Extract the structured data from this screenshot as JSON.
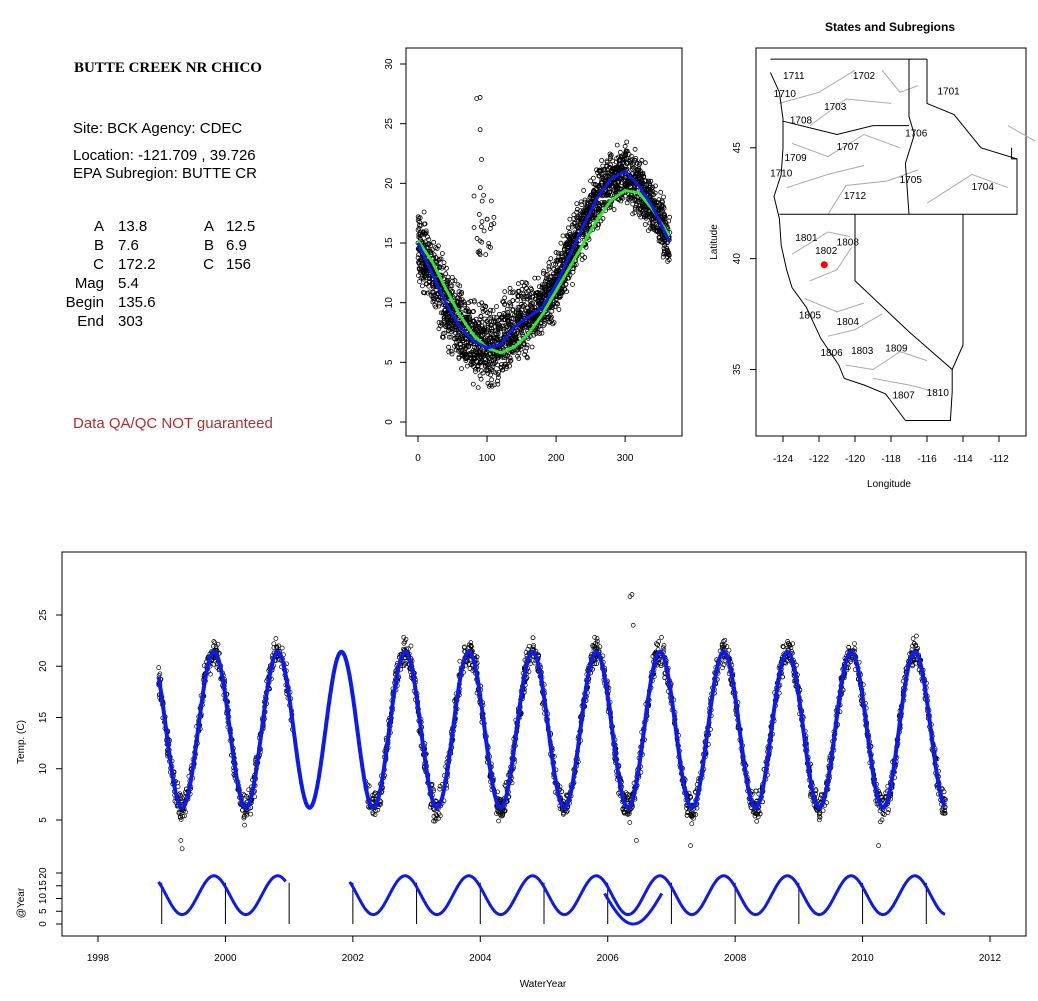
{
  "site_panel": {
    "title": "BUTTE CREEK NR CHICO",
    "site_line": "Site: BCK     Agency: CDEC",
    "location_line": "Location: -121.709 , 39.726",
    "subregion_line": "EPA Subregion: BUTTE CR",
    "params": [
      {
        "label": "A",
        "value1": "13.8",
        "value2_label": "A",
        "value2": "12.5"
      },
      {
        "label": "B",
        "value1": "7.6",
        "value2_label": "B",
        "value2": "6.9"
      },
      {
        "label": "C",
        "value1": "172.2",
        "value2_label": "C",
        "value2": "156"
      },
      {
        "label": "Mag",
        "value1": "5.4"
      },
      {
        "label": "Begin",
        "value1": "135.6"
      },
      {
        "label": "End",
        "value1": "303"
      }
    ],
    "warning": "Data QA/QC NOT guaranteed",
    "warning_color": "#b03030"
  },
  "colors": {
    "fit_blue": "#0b1bf0",
    "fit_green": "#2ee82e",
    "site_marker": "#ff0000"
  },
  "chart_data": [
    {
      "type": "scatter",
      "title": "",
      "xlabel": "",
      "ylabel": "",
      "xlim": [
        0,
        365
      ],
      "ylim": [
        0,
        30
      ],
      "xticks": [
        0,
        100,
        200,
        300
      ],
      "yticks": [
        0,
        5,
        10,
        15,
        20,
        25,
        30
      ],
      "series": [
        {
          "kind": "points",
          "x": [
            0,
            10,
            20,
            30,
            40,
            50,
            60,
            70,
            80,
            90,
            100,
            110,
            120,
            130,
            140,
            150,
            160,
            170,
            180,
            190,
            200,
            210,
            220,
            230,
            240,
            250,
            260,
            270,
            280,
            290,
            300,
            310,
            320,
            330,
            340,
            350,
            360,
            85,
            90,
            95,
            90,
            92,
            100
          ],
          "y": [
            15.0,
            13.2,
            11.6,
            10.2,
            8.9,
            7.8,
            7.0,
            6.4,
            6.0,
            5.8,
            5.9,
            6.1,
            6.5,
            7.0,
            7.6,
            8.3,
            9.2,
            10.3,
            11.5,
            12.8,
            14.2,
            15.6,
            17.0,
            18.3,
            19.4,
            20.2,
            20.9,
            21.2,
            21.0,
            20.5,
            19.8,
            19.0,
            18.1,
            17.3,
            16.6,
            16.0,
            15.5,
            27.1,
            27.2,
            19.0,
            24.5,
            22.0,
            17.0
          ]
        },
        {
          "kind": "line",
          "name": "",
          "color": "#0b1bf0",
          "x": [
            0,
            20,
            40,
            60,
            80,
            100,
            120,
            140,
            160,
            180,
            200,
            220,
            240,
            260,
            280,
            300,
            320,
            340,
            365
          ],
          "y": [
            15.0,
            12.5,
            10.0,
            8.0,
            6.8,
            6.2,
            6.5,
            8.0,
            8.8,
            9.6,
            11.5,
            14.0,
            16.5,
            18.8,
            20.4,
            21.0,
            19.8,
            18.0,
            15.0
          ]
        },
        {
          "kind": "line",
          "name": "",
          "color": "#2ee82e",
          "x": [
            0,
            20,
            40,
            60,
            80,
            100,
            120,
            140,
            160,
            180,
            200,
            220,
            240,
            260,
            280,
            300,
            320,
            340,
            365
          ],
          "y": [
            15.2,
            13.5,
            11.2,
            9.0,
            7.3,
            6.2,
            5.8,
            6.3,
            7.4,
            9.0,
            11.0,
            13.0,
            15.0,
            17.0,
            18.6,
            19.4,
            19.2,
            17.8,
            15.5
          ]
        }
      ]
    },
    {
      "type": "map",
      "title": "States and Subregions",
      "xlabel": "Longitude",
      "ylabel": "Latitude",
      "xlim": [
        -125.5,
        -110.5
      ],
      "ylim": [
        32,
        49.5
      ],
      "xticks": [
        -124,
        -122,
        -120,
        -118,
        -116,
        -114,
        -112
      ],
      "yticks": [
        35,
        40,
        45
      ],
      "regions": [
        {
          "label": "1702",
          "lon": -119.5,
          "lat": 48.1
        },
        {
          "label": "1711",
          "lon": -123.4,
          "lat": 48.1
        },
        {
          "label": "1710",
          "lon": -123.9,
          "lat": 47.3
        },
        {
          "label": "1701",
          "lon": -114.8,
          "lat": 47.4
        },
        {
          "label": "1703",
          "lon": -121.1,
          "lat": 46.7
        },
        {
          "label": "1708",
          "lon": -123.0,
          "lat": 46.1
        },
        {
          "label": "1706",
          "lon": -116.6,
          "lat": 45.5
        },
        {
          "label": "1707",
          "lon": -120.4,
          "lat": 44.9
        },
        {
          "label": "1709",
          "lon": -123.3,
          "lat": 44.4
        },
        {
          "label": "1710",
          "lon": -124.1,
          "lat": 43.7
        },
        {
          "label": "1705",
          "lon": -116.9,
          "lat": 43.4
        },
        {
          "label": "1704",
          "lon": -112.9,
          "lat": 43.1
        },
        {
          "label": "1712",
          "lon": -120.0,
          "lat": 42.7
        },
        {
          "label": "1801",
          "lon": -122.7,
          "lat": 40.8
        },
        {
          "label": "1808",
          "lon": -120.4,
          "lat": 40.6
        },
        {
          "label": "1802",
          "lon": -121.6,
          "lat": 40.2
        },
        {
          "label": "1805",
          "lon": -122.5,
          "lat": 37.3
        },
        {
          "label": "1804",
          "lon": -120.4,
          "lat": 37.0
        },
        {
          "label": "1806",
          "lon": -121.3,
          "lat": 35.6
        },
        {
          "label": "1803",
          "lon": -119.6,
          "lat": 35.7
        },
        {
          "label": "1809",
          "lon": -117.7,
          "lat": 35.8
        },
        {
          "label": "1807",
          "lon": -117.3,
          "lat": 33.7
        },
        {
          "label": "1810",
          "lon": -115.4,
          "lat": 33.8
        }
      ],
      "site_point": {
        "lon": -121.709,
        "lat": 39.726
      }
    },
    {
      "type": "line",
      "title": "",
      "xlabel": "",
      "ylabel": "Temp. (C)",
      "xlim": [
        1997.5,
        2012.5
      ],
      "ylim": [
        0,
        30
      ],
      "yticks": [
        5,
        10,
        15,
        20,
        25
      ],
      "series": [
        {
          "name": "",
          "color": "#0b1bf0",
          "start": 1998.95,
          "end": 2011.3,
          "amplitude": 7.6,
          "mean": 13.8,
          "period": 1.0,
          "peak_offset": 0.82
        },
        {
          "kind": "outliers",
          "x": [
            2006.35,
            2006.38,
            2006.4
          ],
          "y": [
            26.8,
            27.0,
            24.0
          ]
        },
        {
          "kind": "lows",
          "x": [
            1999.3,
            1999.32,
            2000.3,
            2006.45,
            2007.3,
            2010.25
          ],
          "y": [
            3.0,
            2.2,
            4.5,
            3.0,
            2.5,
            2.5
          ]
        }
      ]
    },
    {
      "type": "line",
      "title": "",
      "xlabel": "WaterYear",
      "ylabel": "@Year",
      "xlim": [
        1997.5,
        2012.5
      ],
      "ylim": [
        -3,
        27
      ],
      "xticks": [
        1998,
        2000,
        2002,
        2004,
        2006,
        2008,
        2010,
        2012
      ],
      "yticks": [
        0,
        5,
        10,
        15,
        20
      ],
      "year_marks": [
        1999,
        2000,
        2001,
        2002,
        2003,
        2004,
        2005,
        2006,
        2007,
        2008,
        2009,
        2010,
        2011
      ],
      "series": [
        {
          "name": "",
          "color": "#0b1bf0",
          "segments": [
            [
              1998.95,
              2000.95
            ],
            [
              2001.95,
              2011.3
            ]
          ]
        }
      ]
    }
  ]
}
